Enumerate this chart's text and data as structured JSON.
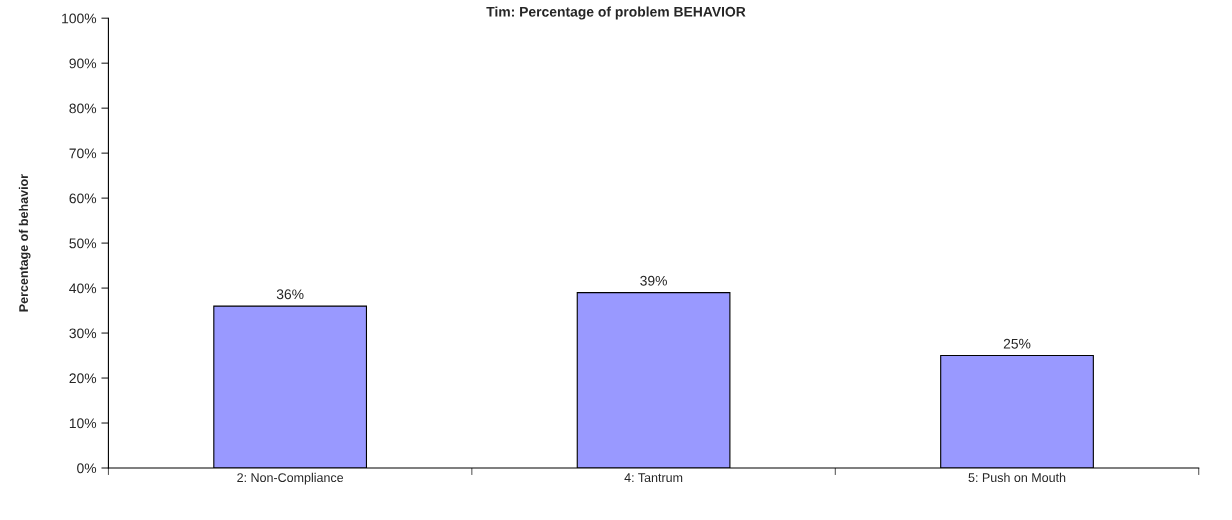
{
  "chart_data": {
    "type": "bar",
    "title": "Tim: Percentage of problem BEHAVIOR",
    "ylabel": "Percentage of behavior",
    "categories": [
      "2: Non-Compliance",
      "4: Tantrum",
      "5: Push on Mouth"
    ],
    "values": [
      36,
      39,
      25
    ],
    "color": "#9999ff",
    "value_labels": [
      "36%",
      "39%",
      "25%"
    ],
    "ylim": [
      0,
      100
    ],
    "yticks": [
      {
        "value": 0,
        "label": "0%"
      },
      {
        "value": 10,
        "label": "10%"
      },
      {
        "value": 20,
        "label": "20%"
      },
      {
        "value": 30,
        "label": "30%"
      },
      {
        "value": 40,
        "label": "40%"
      },
      {
        "value": 50,
        "label": "50%"
      },
      {
        "value": 60,
        "label": "60%"
      },
      {
        "value": 70,
        "label": "70%"
      },
      {
        "value": 80,
        "label": "80%"
      },
      {
        "value": 90,
        "label": "90%"
      },
      {
        "value": 100,
        "label": "100%"
      }
    ],
    "grid": false,
    "legend": false
  }
}
